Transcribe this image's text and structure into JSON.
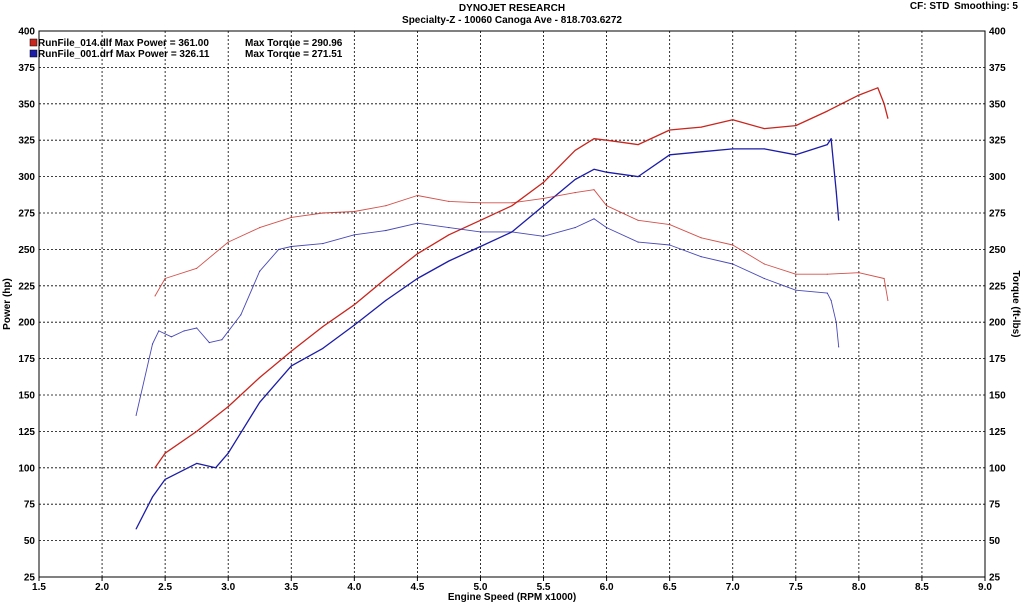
{
  "header": {
    "title": "DYNOJET RESEARCH",
    "subtitle": "Specialty-Z - 10060 Canoga Ave - 818.703.6272",
    "cf": "CF: STD",
    "smoothing": "Smoothing: 5"
  },
  "chart_data": {
    "type": "line",
    "xlabel": "Engine Speed (RPM x1000)",
    "ylabel": "Power (hp)",
    "y2label": "Torque (ft-lbs)",
    "xlim": [
      1.5,
      9.0
    ],
    "ylim": [
      25,
      400
    ],
    "y2lim": [
      25,
      400
    ],
    "x_ticks": [
      "1.5",
      "2.0",
      "2.5",
      "3.0",
      "3.5",
      "4.0",
      "4.5",
      "5.0",
      "5.5",
      "6.0",
      "6.5",
      "7.0",
      "7.5",
      "8.0",
      "8.5",
      "9.0"
    ],
    "y_ticks": [
      "25",
      "50",
      "75",
      "100",
      "125",
      "150",
      "175",
      "200",
      "225",
      "250",
      "275",
      "300",
      "325",
      "350",
      "375",
      "400"
    ],
    "grid": true,
    "legend_position": "top-left",
    "colors": {
      "run1": "#c8261e",
      "run2": "#1c1ca8"
    },
    "legend": [
      {
        "file": "RunFile_014.dlf",
        "power_label": "Max Power = 361.00",
        "torque_label": "Max Torque = 290.96",
        "color": "#c8261e"
      },
      {
        "file": "RunFile_001.drf",
        "power_label": "Max Power = 326.11",
        "torque_label": "Max Torque = 271.51",
        "color": "#1c1ca8"
      }
    ],
    "series": [
      {
        "name": "RunFile_014.dlf",
        "quantity": "power",
        "color": "#c8261e",
        "x": [
          2.42,
          2.5,
          2.75,
          3.0,
          3.25,
          3.5,
          3.75,
          4.0,
          4.25,
          4.5,
          4.75,
          5.0,
          5.25,
          5.5,
          5.75,
          5.9,
          6.0,
          6.25,
          6.5,
          6.75,
          7.0,
          7.25,
          7.5,
          7.75,
          8.0,
          8.15,
          8.2,
          8.23
        ],
        "y": [
          100,
          110,
          125,
          142,
          162,
          180,
          197,
          212,
          230,
          247,
          260,
          270,
          280,
          296,
          318,
          326,
          325,
          322,
          332,
          334,
          339,
          333,
          335,
          345,
          356,
          361,
          350,
          340
        ]
      },
      {
        "name": "RunFile_001.drf",
        "quantity": "power",
        "color": "#1c1ca8",
        "x": [
          2.27,
          2.4,
          2.5,
          2.75,
          2.9,
          3.0,
          3.25,
          3.5,
          3.75,
          4.0,
          4.25,
          4.5,
          4.75,
          5.0,
          5.25,
          5.5,
          5.75,
          5.9,
          6.0,
          6.25,
          6.5,
          6.75,
          7.0,
          7.25,
          7.5,
          7.75,
          7.78,
          7.82,
          7.84
        ],
        "y": [
          58,
          80,
          92,
          103,
          100,
          110,
          145,
          170,
          182,
          198,
          215,
          230,
          242,
          252,
          262,
          280,
          298,
          305,
          303,
          300,
          315,
          317,
          319,
          319,
          315,
          322,
          326,
          290,
          270
        ]
      },
      {
        "name": "RunFile_014.dlf",
        "quantity": "torque",
        "color": "#c8261e",
        "x": [
          2.42,
          2.5,
          2.75,
          3.0,
          3.25,
          3.5,
          3.75,
          4.0,
          4.25,
          4.5,
          4.75,
          5.0,
          5.25,
          5.5,
          5.75,
          5.9,
          6.0,
          6.25,
          6.5,
          6.75,
          7.0,
          7.25,
          7.5,
          7.75,
          8.0,
          8.2,
          8.23
        ],
        "y": [
          218,
          230,
          237,
          255,
          265,
          272,
          275,
          276,
          280,
          287,
          283,
          282,
          282,
          285,
          289,
          291,
          280,
          270,
          267,
          258,
          253,
          240,
          233,
          233,
          234,
          230,
          215
        ]
      },
      {
        "name": "RunFile_001.drf",
        "quantity": "torque",
        "color": "#1c1ca8",
        "x": [
          2.27,
          2.4,
          2.45,
          2.55,
          2.65,
          2.75,
          2.85,
          2.95,
          3.1,
          3.25,
          3.4,
          3.5,
          3.75,
          4.0,
          4.25,
          4.5,
          4.75,
          5.0,
          5.25,
          5.5,
          5.75,
          5.9,
          6.0,
          6.25,
          6.5,
          6.75,
          7.0,
          7.25,
          7.5,
          7.75,
          7.78,
          7.82,
          7.84
        ],
        "y": [
          136,
          185,
          194,
          190,
          194,
          196,
          186,
          188,
          205,
          235,
          250,
          252,
          254,
          260,
          263,
          268,
          265,
          262,
          262,
          259,
          265,
          271,
          265,
          255,
          253,
          245,
          240,
          230,
          222,
          220,
          215,
          200,
          183
        ]
      }
    ]
  }
}
